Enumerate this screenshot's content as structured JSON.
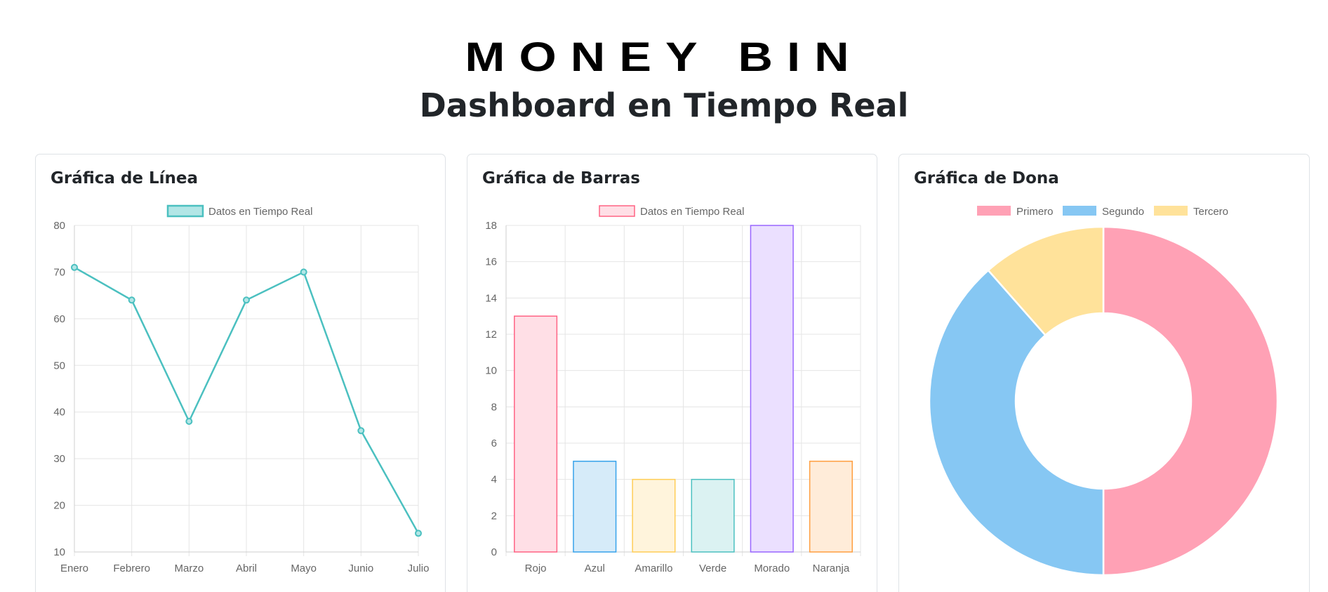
{
  "header": {
    "brand": "MONEY BIN",
    "title": "Dashboard en Tiempo Real"
  },
  "cards": {
    "line": {
      "title": "Gráfica de Línea"
    },
    "bar": {
      "title": "Gráfica de Barras"
    },
    "donut": {
      "title": "Gráfica de Dona"
    }
  },
  "colors": {
    "line": "#4bc0c0",
    "line_fill": "#b2e6e6",
    "grid": "#e5e5e5",
    "tick_text": "#666666",
    "donut_border": "#ffffff"
  },
  "chart_data": [
    {
      "type": "line",
      "title": "Gráfica de Línea",
      "categories": [
        "Enero",
        "Febrero",
        "Marzo",
        "Abril",
        "Mayo",
        "Junio",
        "Julio"
      ],
      "series": [
        {
          "name": "Datos en Tiempo Real",
          "values": [
            71,
            64,
            38,
            64,
            70,
            36,
            14
          ]
        }
      ],
      "yticks": [
        10,
        20,
        30,
        40,
        50,
        60,
        70,
        80
      ],
      "ylim": [
        10,
        80
      ],
      "grid": true,
      "legend": "top"
    },
    {
      "type": "bar",
      "title": "Gráfica de Barras",
      "categories": [
        "Rojo",
        "Azul",
        "Amarillo",
        "Verde",
        "Morado",
        "Naranja"
      ],
      "series": [
        {
          "name": "Datos en Tiempo Real",
          "values": [
            13,
            5,
            4,
            4,
            18,
            5
          ]
        }
      ],
      "bar_colors": [
        {
          "fill": "#ffdfe6",
          "stroke": "#ff6384"
        },
        {
          "fill": "#d6ebf9",
          "stroke": "#36a2eb"
        },
        {
          "fill": "#fff4dc",
          "stroke": "#ffcd56"
        },
        {
          "fill": "#dbf2f2",
          "stroke": "#4bc0c0"
        },
        {
          "fill": "#ebe0ff",
          "stroke": "#9966ff"
        },
        {
          "fill": "#ffecd9",
          "stroke": "#ff9f40"
        }
      ],
      "legend_colors": {
        "fill": "#ffdfe6",
        "stroke": "#ff6384"
      },
      "yticks": [
        0,
        2,
        4,
        6,
        8,
        10,
        12,
        14,
        16,
        18
      ],
      "ylim": [
        0,
        18
      ],
      "grid": true,
      "legend": "top"
    },
    {
      "type": "pie",
      "title": "Gráfica de Dona",
      "labels": [
        "Primero",
        "Segundo",
        "Tercero"
      ],
      "values": [
        50,
        38.5,
        11.5
      ],
      "colors": [
        "#ffa1b5",
        "#86c7f3",
        "#ffe29a"
      ],
      "legend": "top"
    }
  ]
}
